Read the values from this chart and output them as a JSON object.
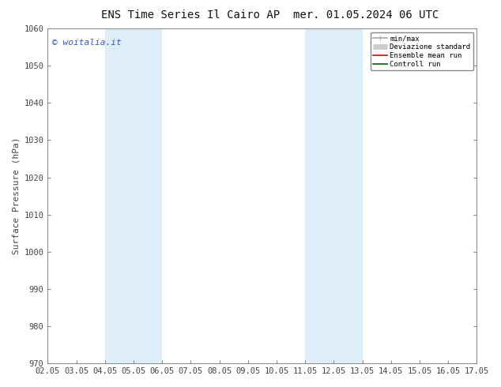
{
  "title_left": "ENS Time Series Il Cairo AP",
  "title_right": "mer. 01.05.2024 06 UTC",
  "ylabel": "Surface Pressure (hPa)",
  "ylim": [
    970,
    1060
  ],
  "yticks": [
    970,
    980,
    990,
    1000,
    1010,
    1020,
    1030,
    1040,
    1050,
    1060
  ],
  "xtick_labels": [
    "02.05",
    "03.05",
    "04.05",
    "05.05",
    "06.05",
    "07.05",
    "08.05",
    "09.05",
    "10.05",
    "11.05",
    "12.05",
    "13.05",
    "14.05",
    "15.05",
    "16.05",
    "17.05"
  ],
  "shaded_bands": [
    {
      "xstart": 2,
      "xend": 4,
      "color": "#ddeef8"
    },
    {
      "xstart": 9,
      "xend": 11,
      "color": "#ddeef8"
    }
  ],
  "watermark": "© woitalia.it",
  "watermark_color": "#3355cc",
  "background_color": "#ffffff",
  "plot_bg_color": "#ffffff",
  "legend_items": [
    {
      "label": "min/max",
      "color": "#aaaaaa",
      "lw": 1.2
    },
    {
      "label": "Deviazione standard",
      "color": "#cccccc",
      "lw": 5
    },
    {
      "label": "Ensemble mean run",
      "color": "#dd0000",
      "lw": 1.2
    },
    {
      "label": "Controll run",
      "color": "#006600",
      "lw": 1.2
    }
  ],
  "spine_color": "#888888",
  "tick_color": "#444444",
  "title_fontsize": 10,
  "ylabel_fontsize": 8,
  "tick_fontsize": 7.5,
  "watermark_fontsize": 8
}
